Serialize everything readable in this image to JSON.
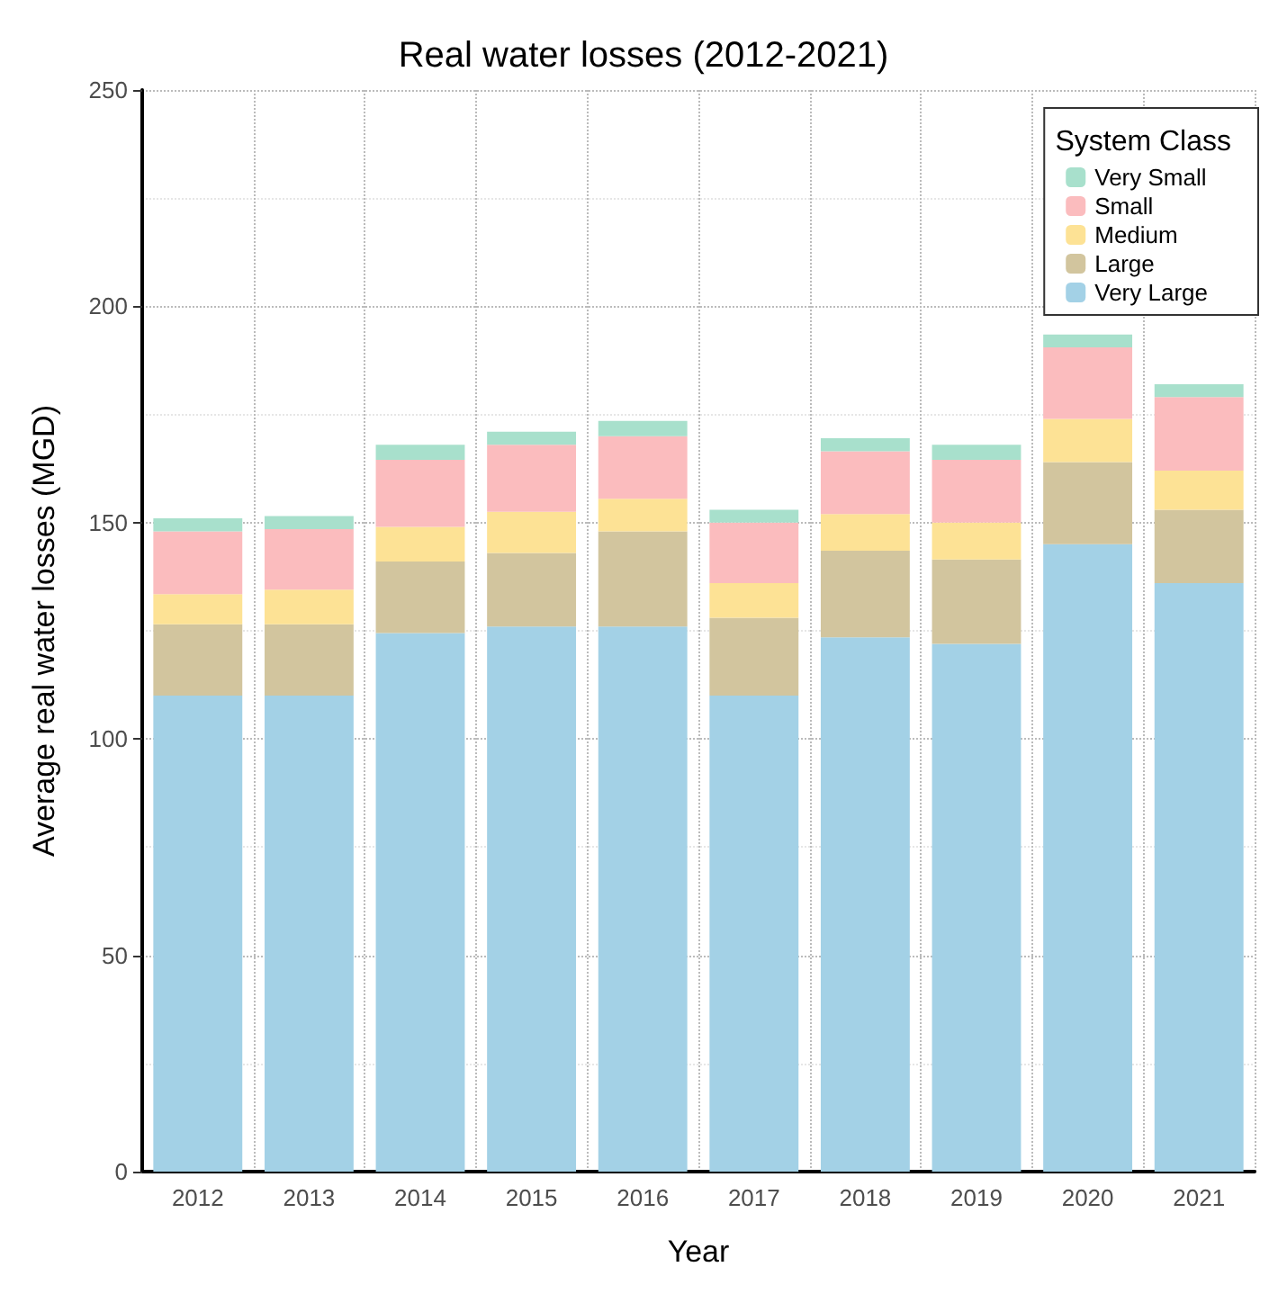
{
  "chart_data": {
    "type": "bar",
    "title": "Real water losses (2012-2021)",
    "xlabel": "Year",
    "ylabel": "Average real water losses (MGD)",
    "legend_title": "System Class",
    "categories": [
      "2012",
      "2013",
      "2014",
      "2015",
      "2016",
      "2017",
      "2018",
      "2019",
      "2020",
      "2021"
    ],
    "stacked": true,
    "series": [
      {
        "name": "Very Large",
        "color": "#a3d1e6",
        "values": [
          110,
          110,
          124.5,
          126,
          126,
          110,
          123.5,
          122,
          145,
          136
        ]
      },
      {
        "name": "Large",
        "color": "#d2c59e",
        "values": [
          16.5,
          16.5,
          16.5,
          17,
          22,
          18,
          20,
          19.5,
          19,
          17
        ]
      },
      {
        "name": "Medium",
        "color": "#fde295",
        "values": [
          7,
          8,
          8,
          9.5,
          7.5,
          8,
          8.5,
          8.5,
          10,
          9
        ]
      },
      {
        "name": "Small",
        "color": "#fbbcbe",
        "values": [
          14.5,
          14,
          15.5,
          15.5,
          14.5,
          14,
          14.5,
          14.5,
          16.5,
          17
        ]
      },
      {
        "name": "Very Small",
        "color": "#a8e0cc",
        "values": [
          3,
          3,
          3.5,
          3,
          3.5,
          3,
          3,
          3.5,
          3,
          3
        ]
      }
    ],
    "ylim": [
      0,
      250
    ],
    "yticks": [
      0,
      50,
      100,
      150,
      200,
      250
    ],
    "grid": true,
    "legend": "top right"
  }
}
